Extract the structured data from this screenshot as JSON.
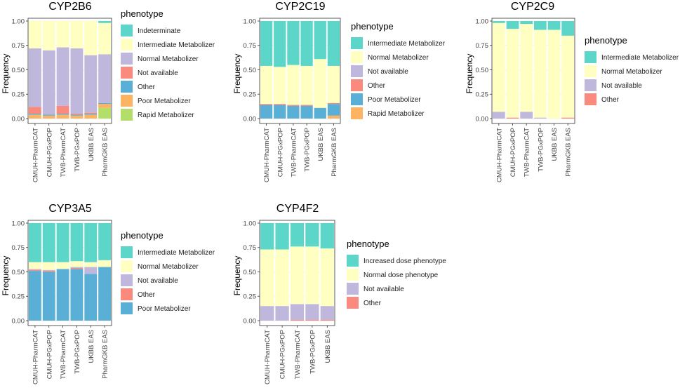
{
  "figure": {
    "ylabel": "Frequency",
    "legend_title": "phenotype"
  },
  "colors": {
    "Indeterminate": "#5cd6c8",
    "Intermediate Metabolizer": "#5cd6c8",
    "Increased dose phenotype": "#5cd6c8",
    "Normal Metabolizer": "#ffffc2",
    "Normal dose phenotype": "#ffffc2",
    "Not available": "#c0b7dc",
    "Other": "#f98a7d",
    "Poor Metabolizer": "#5aafd6",
    "Rapid Metabolizer": "#fdb462",
    "Rapid Metabolizer (CYP2B6)": "#b3de69"
  },
  "chart_data": [
    {
      "type": "bar",
      "stacked": true,
      "title": "CYP2B6",
      "ylabel": "Frequency",
      "ylim": [
        0,
        1
      ],
      "yticks": [
        "0.00",
        "0.25",
        "0.50",
        "0.75",
        "1.00"
      ],
      "categories": [
        "CMUH-PharmCAT",
        "CMUH-PGxPOP",
        "TWB-PharmCAT",
        "TWB-PGxPOP",
        "UKBB EAS",
        "PharmGKB EAS"
      ],
      "legend": [
        "Indeterminate",
        "Intermediate Metabolizer",
        "Normal Metabolizer",
        "Not available",
        "Other",
        "Poor Metabolizer",
        "Rapid Metabolizer"
      ],
      "legend_colors": [
        "#5cd6c8",
        "#ffffc2",
        "#c0b7dc",
        "#f98a7d",
        "#5aafd6",
        "#fdb462",
        "#b3de69"
      ],
      "series": [
        {
          "name": "Rapid Metabolizer",
          "color": "#b3de69",
          "values": [
            0,
            0,
            0,
            0,
            0,
            0.11
          ]
        },
        {
          "name": "Poor Metabolizer",
          "color": "#fdb462",
          "values": [
            0.04,
            0.03,
            0.04,
            0.03,
            0.04,
            0.04
          ]
        },
        {
          "name": "Other",
          "color": "#5aafd6",
          "values": [
            0.01,
            0.01,
            0.01,
            0.01,
            0.01,
            0.01
          ]
        },
        {
          "name": "Not available",
          "color": "#f98a7d",
          "values": [
            0.07,
            0,
            0.08,
            0.01,
            0.01,
            0
          ]
        },
        {
          "name": "Normal Metabolizer",
          "color": "#c0b7dc",
          "values": [
            0.6,
            0.66,
            0.6,
            0.67,
            0.59,
            0.5
          ]
        },
        {
          "name": "Intermediate Metabolizer",
          "color": "#ffffc2",
          "values": [
            0.28,
            0.3,
            0.27,
            0.28,
            0.35,
            0.32
          ]
        },
        {
          "name": "Indeterminate",
          "color": "#5cd6c8",
          "values": [
            0,
            0,
            0,
            0,
            0,
            0.02
          ]
        }
      ]
    },
    {
      "type": "bar",
      "stacked": true,
      "title": "CYP2C19",
      "ylabel": "Frequency",
      "ylim": [
        0,
        1
      ],
      "yticks": [
        "0.00",
        "0.25",
        "0.50",
        "0.75",
        "1.00"
      ],
      "categories": [
        "CMUH-PharmCAT",
        "CMUH-PGxPOP",
        "TWB-PharmCAT",
        "TWB-PGxPOP",
        "UKBB EAS",
        "PharmGKB EAS"
      ],
      "legend": [
        "Intermediate Metabolizer",
        "Normal Metabolizer",
        "Not available",
        "Other",
        "Poor Metabolizer",
        "Rapid Metabolizer"
      ],
      "legend_colors": [
        "#5cd6c8",
        "#ffffc2",
        "#c0b7dc",
        "#f98a7d",
        "#5aafd6",
        "#fdb462"
      ],
      "series": [
        {
          "name": "Rapid Metabolizer",
          "color": "#fdb462",
          "values": [
            0,
            0,
            0,
            0,
            0,
            0.03
          ]
        },
        {
          "name": "Poor Metabolizer",
          "color": "#5aafd6",
          "values": [
            0.14,
            0.14,
            0.13,
            0.13,
            0.11,
            0.12
          ]
        },
        {
          "name": "Other",
          "color": "#f98a7d",
          "values": [
            0.01,
            0.01,
            0.01,
            0.01,
            0,
            0.01
          ]
        },
        {
          "name": "Not available",
          "color": "#c0b7dc",
          "values": [
            0,
            0,
            0,
            0,
            0,
            0
          ]
        },
        {
          "name": "Normal Metabolizer",
          "color": "#ffffc2",
          "values": [
            0.39,
            0.38,
            0.41,
            0.4,
            0.5,
            0.38
          ]
        },
        {
          "name": "Intermediate Metabolizer",
          "color": "#5cd6c8",
          "values": [
            0.46,
            0.47,
            0.45,
            0.46,
            0.39,
            0.46
          ]
        }
      ]
    },
    {
      "type": "bar",
      "stacked": true,
      "title": "CYP2C9",
      "ylabel": "Frequency",
      "ylim": [
        0,
        1
      ],
      "yticks": [
        "0.00",
        "0.25",
        "0.50",
        "0.75",
        "1.00"
      ],
      "categories": [
        "CMUH-PharmCAT",
        "CMUH-PGxPOP",
        "TWB-PharmCAT",
        "TWB-PGxPOP",
        "UKBB EAS",
        "PharmGKB EAS"
      ],
      "legend": [
        "Intermediate Metabolizer",
        "Normal Metabolizer",
        "Not available",
        "Other"
      ],
      "legend_colors": [
        "#5cd6c8",
        "#ffffc2",
        "#c0b7dc",
        "#f98a7d"
      ],
      "series": [
        {
          "name": "Other",
          "color": "#f98a7d",
          "values": [
            0,
            0.01,
            0,
            0,
            0,
            0.01
          ]
        },
        {
          "name": "Not available",
          "color": "#c0b7dc",
          "values": [
            0.07,
            0,
            0.07,
            0.01,
            0,
            0
          ]
        },
        {
          "name": "Normal Metabolizer",
          "color": "#ffffc2",
          "values": [
            0.91,
            0.91,
            0.9,
            0.9,
            0.91,
            0.84
          ]
        },
        {
          "name": "Intermediate Metabolizer",
          "color": "#5cd6c8",
          "values": [
            0.02,
            0.08,
            0.03,
            0.09,
            0.09,
            0.15
          ]
        }
      ]
    },
    {
      "type": "bar",
      "stacked": true,
      "title": "CYP3A5",
      "ylabel": "Frequency",
      "ylim": [
        0,
        1
      ],
      "yticks": [
        "0.00",
        "0.25",
        "0.50",
        "0.75",
        "1.00"
      ],
      "categories": [
        "CMUH-PharmCAT",
        "CMUH-PGxPOP",
        "TWB-PharmCAT",
        "TWB-PGxPOP",
        "UKBB EAS",
        "PharmGKB EAS"
      ],
      "legend": [
        "Intermediate Metabolizer",
        "Normal Metabolizer",
        "Not available",
        "Other",
        "Poor Metabolizer"
      ],
      "legend_colors": [
        "#5cd6c8",
        "#ffffc2",
        "#c0b7dc",
        "#f98a7d",
        "#5aafd6"
      ],
      "series": [
        {
          "name": "Poor Metabolizer",
          "color": "#5aafd6",
          "values": [
            0.51,
            0.5,
            0.53,
            0.53,
            0.48,
            0.55
          ]
        },
        {
          "name": "Other",
          "color": "#f98a7d",
          "values": [
            0.01,
            0.01,
            0,
            0.01,
            0,
            0
          ]
        },
        {
          "name": "Not available",
          "color": "#c0b7dc",
          "values": [
            0.01,
            0.01,
            0,
            0.01,
            0.07,
            0
          ]
        },
        {
          "name": "Normal Metabolizer",
          "color": "#ffffc2",
          "values": [
            0.07,
            0.08,
            0.07,
            0.06,
            0.05,
            0.07
          ]
        },
        {
          "name": "Intermediate Metabolizer",
          "color": "#5cd6c8",
          "values": [
            0.4,
            0.4,
            0.4,
            0.39,
            0.4,
            0.38
          ]
        }
      ]
    },
    {
      "type": "bar",
      "stacked": true,
      "title": "CYP4F2",
      "ylabel": "Frequency",
      "ylim": [
        0,
        1
      ],
      "yticks": [
        "0.00",
        "0.25",
        "0.50",
        "0.75",
        "1.00"
      ],
      "categories": [
        "CMUH-PharmCAT",
        "CMUH-PGxPOP",
        "TWB-PharmCAT",
        "TWB-PGxPOP",
        "UKBB EAS"
      ],
      "legend": [
        "Increased dose phenotype",
        "Normal dose phenotype",
        "Not available",
        "Other"
      ],
      "legend_colors": [
        "#5cd6c8",
        "#ffffc2",
        "#c0b7dc",
        "#f98a7d"
      ],
      "series": [
        {
          "name": "Other",
          "color": "#f98a7d",
          "values": [
            0,
            0,
            0.01,
            0.01,
            0.01
          ]
        },
        {
          "name": "Not available",
          "color": "#c0b7dc",
          "values": [
            0.15,
            0.15,
            0.16,
            0.16,
            0.14
          ]
        },
        {
          "name": "Normal dose phenotype",
          "color": "#ffffc2",
          "values": [
            0.58,
            0.58,
            0.59,
            0.59,
            0.59
          ]
        },
        {
          "name": "Increased dose phenotype",
          "color": "#5cd6c8",
          "values": [
            0.27,
            0.27,
            0.24,
            0.24,
            0.26
          ]
        }
      ]
    }
  ]
}
